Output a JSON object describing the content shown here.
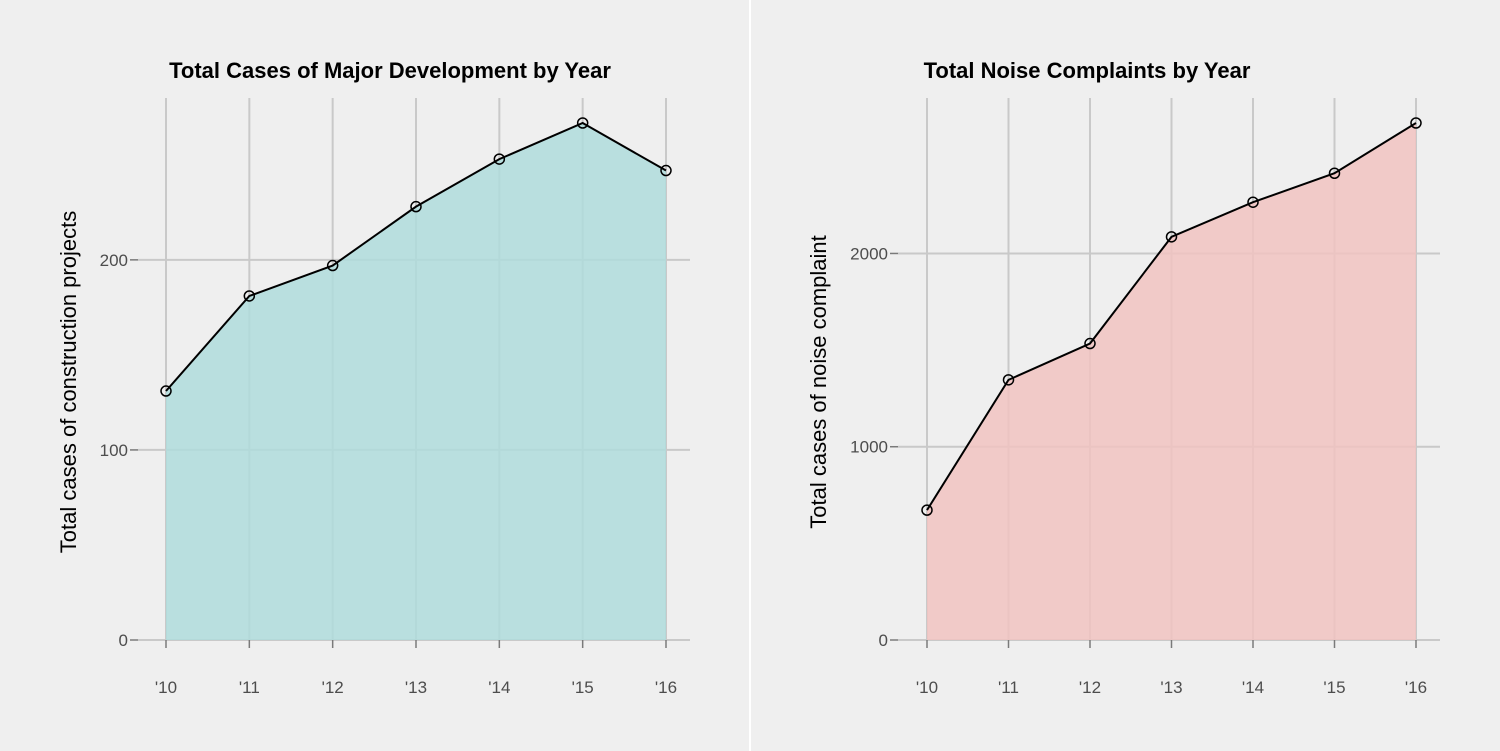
{
  "chart_data": [
    {
      "type": "area",
      "title": "Total Cases of Major Development by Year",
      "xlabel": "",
      "ylabel": "Total cases of construction projects",
      "categories": [
        "'10",
        "'11",
        "'12",
        "'13",
        "'14",
        "'15",
        "'16"
      ],
      "values": [
        131,
        181,
        197,
        228,
        253,
        272,
        247
      ],
      "ylim": [
        0,
        272
      ],
      "yticks": [
        0,
        100,
        200
      ],
      "grid": true,
      "legend": "none",
      "fill_color": "#afdcdc"
    },
    {
      "type": "area",
      "title": "Total Noise Complaints by Year",
      "xlabel": "",
      "ylabel": "Total cases of noise complaint",
      "categories": [
        "'10",
        "'11",
        "'12",
        "'13",
        "'14",
        "'15",
        "'16"
      ],
      "values": [
        672,
        1346,
        1534,
        2086,
        2265,
        2415,
        2675
      ],
      "ylim": [
        0,
        2675
      ],
      "yticks": [
        0,
        1000,
        2000
      ],
      "grid": true,
      "legend": "none",
      "fill_color": "#f1c3c1"
    }
  ]
}
